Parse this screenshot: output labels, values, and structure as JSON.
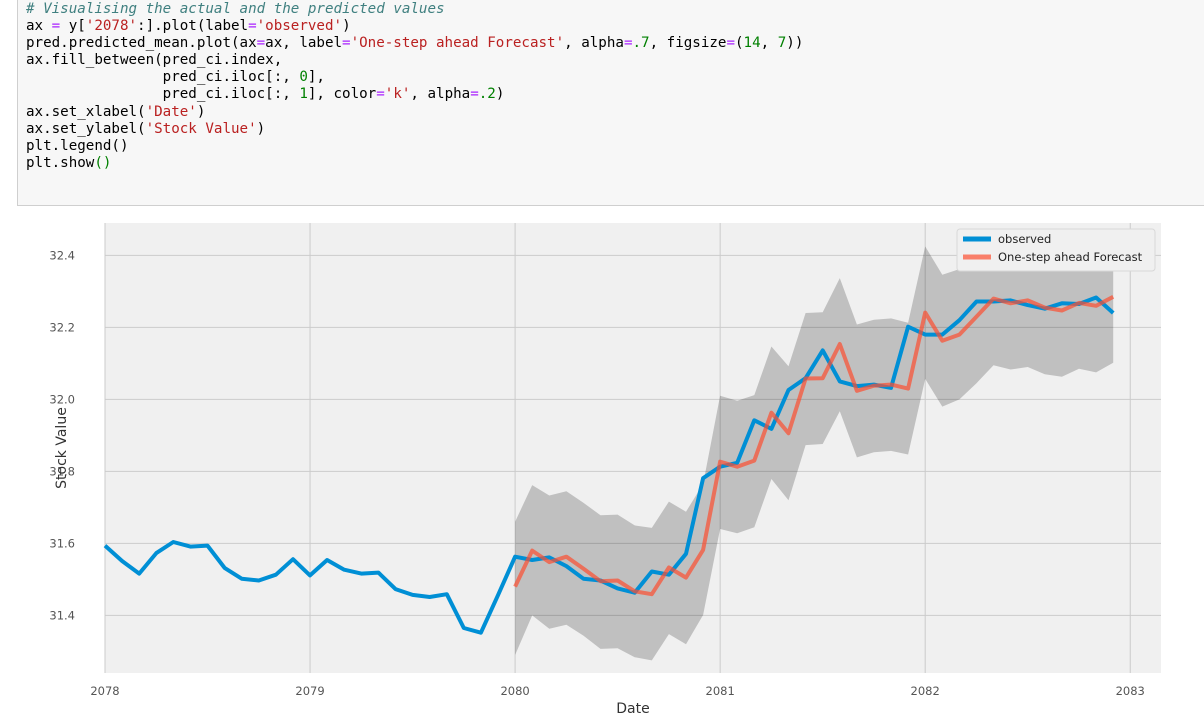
{
  "code_cell": {
    "lines": [
      [
        {
          "t": "# Visualising the actual and the predicted values",
          "c": "comment"
        }
      ],
      [
        {
          "t": "ax ",
          "c": "plain"
        },
        {
          "t": "=",
          "c": "op"
        },
        {
          "t": " y[",
          "c": "plain"
        },
        {
          "t": "'2078'",
          "c": "string"
        },
        {
          "t": ":].plot(label",
          "c": "plain"
        },
        {
          "t": "=",
          "c": "op"
        },
        {
          "t": "'observed'",
          "c": "string"
        },
        {
          "t": ")",
          "c": "plain"
        }
      ],
      [
        {
          "t": "pred.predicted_mean.plot(ax",
          "c": "plain"
        },
        {
          "t": "=",
          "c": "op"
        },
        {
          "t": "ax, label",
          "c": "plain"
        },
        {
          "t": "=",
          "c": "op"
        },
        {
          "t": "'One-step ahead Forecast'",
          "c": "string"
        },
        {
          "t": ", alpha",
          "c": "plain"
        },
        {
          "t": "=",
          "c": "op"
        },
        {
          "t": ".7",
          "c": "num"
        },
        {
          "t": ", figsize",
          "c": "plain"
        },
        {
          "t": "=",
          "c": "op"
        },
        {
          "t": "(",
          "c": "plain"
        },
        {
          "t": "14",
          "c": "num"
        },
        {
          "t": ", ",
          "c": "plain"
        },
        {
          "t": "7",
          "c": "num"
        },
        {
          "t": "))",
          "c": "plain"
        }
      ],
      [
        {
          "t": "ax.fill_between(pred_ci.index,",
          "c": "plain"
        }
      ],
      [
        {
          "t": "                pred_ci.iloc[:, ",
          "c": "plain"
        },
        {
          "t": "0",
          "c": "num"
        },
        {
          "t": "],",
          "c": "plain"
        }
      ],
      [
        {
          "t": "                pred_ci.iloc[:, ",
          "c": "plain"
        },
        {
          "t": "1",
          "c": "num"
        },
        {
          "t": "], color",
          "c": "plain"
        },
        {
          "t": "=",
          "c": "op"
        },
        {
          "t": "'k'",
          "c": "string"
        },
        {
          "t": ", alpha",
          "c": "plain"
        },
        {
          "t": "=",
          "c": "op"
        },
        {
          "t": ".2",
          "c": "num"
        },
        {
          "t": ")",
          "c": "plain"
        }
      ],
      [
        {
          "t": "ax.set_xlabel(",
          "c": "plain"
        },
        {
          "t": "'Date'",
          "c": "string"
        },
        {
          "t": ")",
          "c": "plain"
        }
      ],
      [
        {
          "t": "ax.set_ylabel(",
          "c": "plain"
        },
        {
          "t": "'Stock Value'",
          "c": "string"
        },
        {
          "t": ")",
          "c": "plain"
        }
      ],
      [
        {
          "t": "plt.legend()",
          "c": "plain"
        }
      ],
      [
        {
          "t": "plt.show",
          "c": "plain"
        },
        {
          "t": "()",
          "c": "num"
        }
      ]
    ]
  },
  "colors": {
    "observed": "#008fd5",
    "forecast": "#fc4f30",
    "ci_fill": "#000000",
    "plot_bg": "#f0f0f0",
    "grid": "#cbcbcb"
  },
  "chart_data": {
    "type": "line",
    "title": "",
    "xlabel": "Date",
    "ylabel": "Stock Value",
    "xlim": [
      2078.0,
      2083.15
    ],
    "ylim": [
      31.24,
      32.49
    ],
    "x_ticks": [
      2078,
      2079,
      2080,
      2081,
      2082,
      2083
    ],
    "x_tick_labels": [
      "2078",
      "2079",
      "2080",
      "2081",
      "2082",
      "2083"
    ],
    "y_ticks": [
      31.4,
      31.6,
      31.8,
      32.0,
      32.2,
      32.4
    ],
    "y_tick_labels": [
      "31.4",
      "31.6",
      "31.8",
      "32.0",
      "32.2",
      "32.4"
    ],
    "grid": true,
    "legend_position": "top-right",
    "series": [
      {
        "name": "observed",
        "x": [
          2078.0,
          2078.0833,
          2078.1667,
          2078.25,
          2078.3333,
          2078.4167,
          2078.5,
          2078.5833,
          2078.6667,
          2078.75,
          2078.8333,
          2078.9167,
          2079.0,
          2079.0833,
          2079.1667,
          2079.25,
          2079.3333,
          2079.4167,
          2079.5,
          2079.5833,
          2079.6667,
          2079.75,
          2079.8333,
          2079.9167,
          2080.0,
          2080.0833,
          2080.1667,
          2080.25,
          2080.3333,
          2080.4167,
          2080.5,
          2080.5833,
          2080.6667,
          2080.75,
          2080.8333,
          2080.9167,
          2081.0,
          2081.0833,
          2081.1667,
          2081.25,
          2081.3333,
          2081.4167,
          2081.5,
          2081.5833,
          2081.6667,
          2081.75,
          2081.8333,
          2081.9167,
          2082.0,
          2082.0833,
          2082.1667,
          2082.25,
          2082.3333,
          2082.4167,
          2082.5,
          2082.5833,
          2082.6667,
          2082.75,
          2082.8333,
          2082.9167
        ],
        "values": [
          31.594,
          31.551,
          31.516,
          31.573,
          31.604,
          31.591,
          31.594,
          31.532,
          31.502,
          31.497,
          31.513,
          31.556,
          31.511,
          31.554,
          31.527,
          31.516,
          31.519,
          31.473,
          31.457,
          31.451,
          31.459,
          31.365,
          31.352,
          31.456,
          31.563,
          31.554,
          31.561,
          31.537,
          31.502,
          31.497,
          31.475,
          31.463,
          31.522,
          31.513,
          31.571,
          31.781,
          31.813,
          31.824,
          31.942,
          31.918,
          32.026,
          32.059,
          32.136,
          32.05,
          32.037,
          32.041,
          32.032,
          32.202,
          32.18,
          32.18,
          32.22,
          32.272,
          32.272,
          32.275,
          32.262,
          32.252,
          32.267,
          32.265,
          32.283,
          32.24
        ]
      },
      {
        "name": "One-step ahead Forecast",
        "x": [
          2080.0,
          2080.0833,
          2080.1667,
          2080.25,
          2080.3333,
          2080.4167,
          2080.5,
          2080.5833,
          2080.6667,
          2080.75,
          2080.8333,
          2080.9167,
          2081.0,
          2081.0833,
          2081.1667,
          2081.25,
          2081.3333,
          2081.4167,
          2081.5,
          2081.5833,
          2081.6667,
          2081.75,
          2081.8333,
          2081.9167,
          2082.0,
          2082.0833,
          2082.1667,
          2082.25,
          2082.3333,
          2082.4167,
          2082.5,
          2082.5833,
          2082.6667,
          2082.75,
          2082.8333,
          2082.9167
        ],
        "values": [
          31.48,
          31.58,
          31.548,
          31.563,
          31.53,
          31.495,
          31.497,
          31.467,
          31.459,
          31.533,
          31.505,
          31.582,
          31.827,
          31.813,
          31.83,
          31.963,
          31.906,
          32.058,
          32.059,
          32.154,
          32.024,
          32.038,
          32.041,
          32.03,
          32.241,
          32.163,
          32.18,
          32.23,
          32.28,
          32.267,
          32.275,
          32.255,
          32.247,
          32.268,
          32.26,
          32.285
        ]
      }
    ],
    "confidence_interval": {
      "x": [
        2080.0,
        2080.0833,
        2080.1667,
        2080.25,
        2080.3333,
        2080.4167,
        2080.5,
        2080.5833,
        2080.6667,
        2080.75,
        2080.8333,
        2080.9167,
        2081.0,
        2081.0833,
        2081.1667,
        2081.25,
        2081.3333,
        2081.4167,
        2081.5,
        2081.5833,
        2081.6667,
        2081.75,
        2081.8333,
        2081.9167,
        2082.0,
        2082.0833,
        2082.1667,
        2082.25,
        2082.3333,
        2082.4167,
        2082.5,
        2082.5833,
        2082.6667,
        2082.75,
        2082.8333,
        2082.9167
      ],
      "lower": [
        31.29,
        31.4,
        31.363,
        31.374,
        31.344,
        31.307,
        31.309,
        31.284,
        31.275,
        31.348,
        31.32,
        31.401,
        31.64,
        31.628,
        31.645,
        31.779,
        31.72,
        31.873,
        31.876,
        31.967,
        31.839,
        31.853,
        31.857,
        31.847,
        32.057,
        31.98,
        32.0,
        32.045,
        32.095,
        32.083,
        32.09,
        32.07,
        32.063,
        32.085,
        32.075,
        32.102
      ],
      "upper": [
        31.66,
        31.762,
        31.733,
        31.745,
        31.713,
        31.678,
        31.68,
        31.65,
        31.643,
        31.716,
        31.688,
        31.765,
        32.01,
        31.996,
        32.012,
        32.147,
        32.092,
        32.24,
        32.242,
        32.337,
        32.208,
        32.221,
        32.225,
        32.213,
        32.425,
        32.346,
        32.362,
        32.413,
        32.463,
        32.45,
        32.458,
        32.438,
        32.431,
        32.452,
        32.445,
        32.468
      ]
    }
  }
}
